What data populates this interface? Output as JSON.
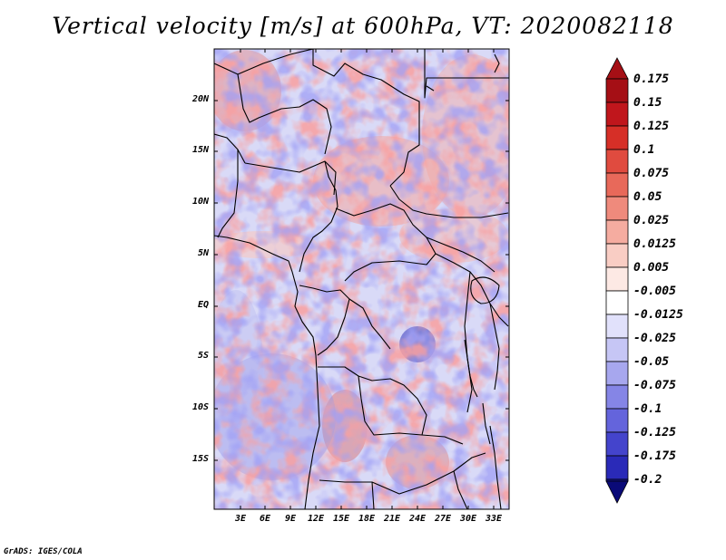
{
  "title": "Vertical velocity [m/s] at 600hPa, VT: 2020082118",
  "y_ticks": [
    "20N",
    "15N",
    "10N",
    "5N",
    "EQ",
    "5S",
    "10S",
    "15S"
  ],
  "x_ticks": [
    "3E",
    "6E",
    "9E",
    "12E",
    "15E",
    "18E",
    "21E",
    "24E",
    "27E",
    "30E",
    "33E"
  ],
  "colorbar": {
    "labels": [
      "0.175",
      "0.15",
      "0.125",
      "0.1",
      "0.075",
      "0.05",
      "0.025",
      "0.0125",
      "0.005",
      "-0.005",
      "-0.0125",
      "-0.025",
      "-0.05",
      "-0.075",
      "-0.1",
      "-0.125",
      "-0.175",
      "-0.2"
    ],
    "colors": [
      "#a50f15",
      "#c0161c",
      "#d62f27",
      "#e04b3f",
      "#e8695a",
      "#ef8a7c",
      "#f5aca0",
      "#f9cdc4",
      "#fde9e4",
      "#ffffff",
      "#e1e1fb",
      "#c6c6f5",
      "#a7a7ee",
      "#8585e6",
      "#6464dc",
      "#4444cc",
      "#2a2ab8",
      "#15159a",
      "#0a0a78"
    ]
  },
  "footer": "GrADS: IGES/COLA"
}
